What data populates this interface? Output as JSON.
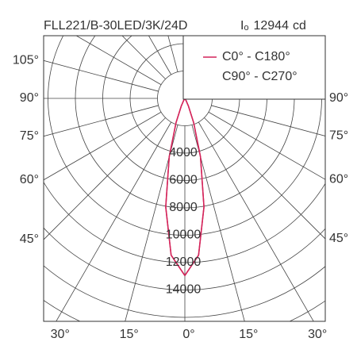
{
  "chart_data": {
    "type": "polar",
    "title": "FLL221/B-30LED/3K/24D",
    "peak_symbol": "Iₒ",
    "peak": 12944,
    "peak_unit": "cd",
    "angles": [
      0,
      5,
      10,
      15,
      20,
      25,
      30,
      40,
      90
    ],
    "series": [
      {
        "name": "C0° - C180°",
        "color": "#d4245a",
        "values": [
          12944,
          11500,
          8050,
          4420,
          1880,
          612,
          150,
          0,
          0
        ]
      },
      {
        "name": "C90° - C270°",
        "color": "#d4245a",
        "values": [
          12944,
          11500,
          8050,
          4420,
          1880,
          612,
          150,
          0,
          0
        ]
      }
    ],
    "rticks": [
      4000,
      6000,
      8000,
      10000,
      12000,
      14000
    ],
    "left_ticks": [
      {
        "value": 105,
        "label": "105°"
      },
      {
        "value": 90,
        "label": "90°"
      },
      {
        "value": 75,
        "label": "75°"
      },
      {
        "value": 60,
        "label": "60°"
      },
      {
        "value": 45,
        "label": "45°"
      }
    ],
    "right_ticks": [
      {
        "value": 90,
        "label": "90°"
      },
      {
        "value": 75,
        "label": "75°"
      },
      {
        "value": 60,
        "label": "60°"
      },
      {
        "value": 45,
        "label": "45°"
      }
    ],
    "bottom_ticks": [
      {
        "value": -30,
        "label": "30°"
      },
      {
        "value": -15,
        "label": "15°"
      },
      {
        "value": 0,
        "label": "0°"
      },
      {
        "value": 15,
        "label": "15°"
      },
      {
        "value": 30,
        "label": "30°"
      }
    ],
    "angle_step": 15,
    "grid": true
  }
}
